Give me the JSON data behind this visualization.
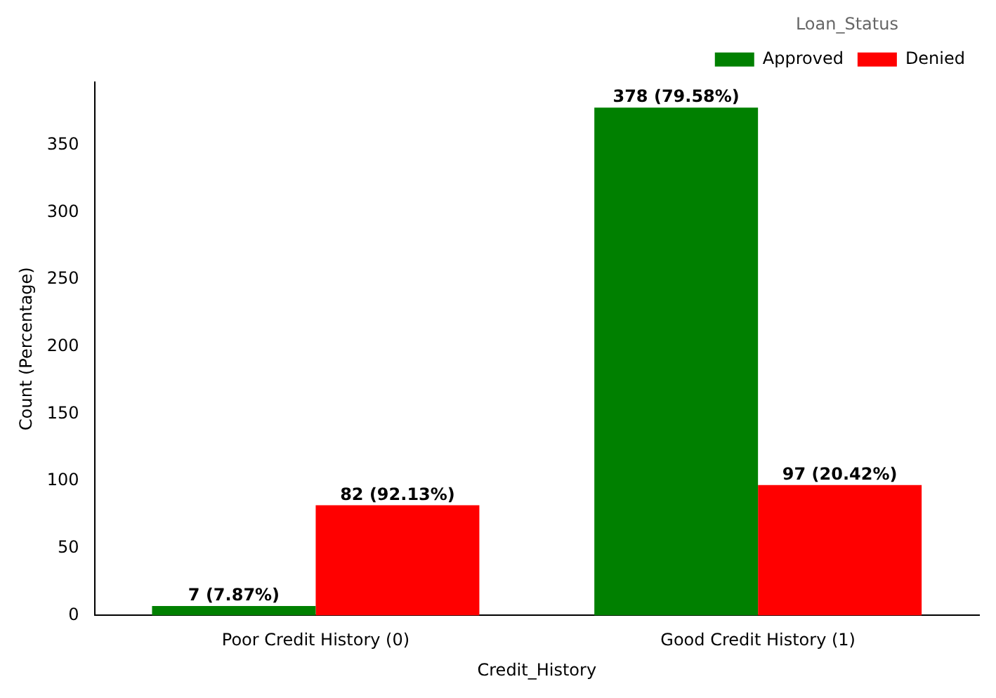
{
  "chart_data": {
    "type": "bar",
    "xlabel": "Credit_History",
    "ylabel": "Count (Percentage)",
    "legend_title": "Loan_Status",
    "legend": "top right",
    "grid": false,
    "categories": [
      "Poor Credit History (0)",
      "Good Credit History (1)"
    ],
    "series": [
      {
        "name": "Approved",
        "color": "#008000",
        "values": [
          7,
          378
        ],
        "value_labels": [
          "7 (7.87%)",
          "378 (79.58%)"
        ]
      },
      {
        "name": "Denied",
        "color": "#ff0000",
        "values": [
          82,
          97
        ],
        "value_labels": [
          "82 (92.13%)",
          "97 (20.42%)"
        ]
      }
    ],
    "ylim": [
      0,
      397
    ],
    "yticks": [
      0,
      50,
      100,
      150,
      200,
      250,
      300,
      350
    ]
  }
}
